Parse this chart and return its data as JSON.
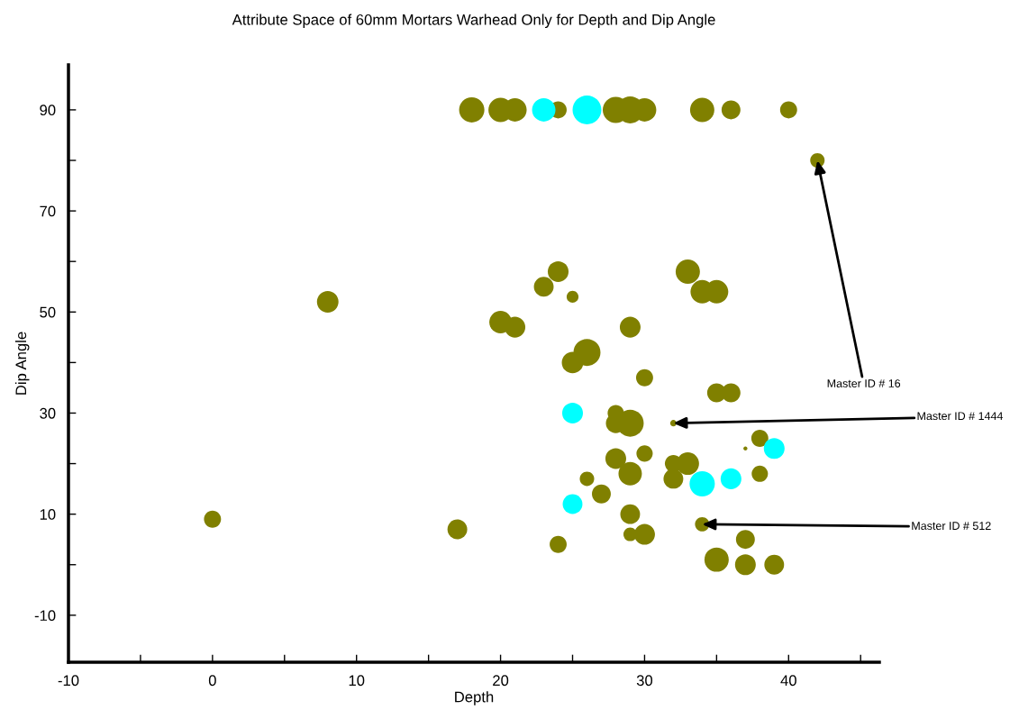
{
  "chart_data": {
    "type": "bubble",
    "title": "Attribute Space of 60mm Mortars Warhead Only for Depth and Dip Angle",
    "xlabel": "Depth",
    "ylabel": "Dip Angle",
    "xlim": [
      -10,
      46.3
    ],
    "ylim": [
      -19.3,
      98.9
    ],
    "xticks": [
      -10,
      {
        "value": -5,
        "label": null
      },
      0,
      {
        "value": 5,
        "label": null
      },
      10,
      {
        "value": 15,
        "label": null
      },
      20,
      {
        "value": 25,
        "label": null
      },
      30,
      {
        "value": 35,
        "label": null
      },
      40,
      {
        "value": 45,
        "label": null
      }
    ],
    "yticks": [
      -10,
      {
        "value": 0,
        "label": null
      },
      10,
      {
        "value": 20,
        "label": null
      },
      30,
      {
        "value": 40,
        "label": null
      },
      50,
      {
        "value": 60,
        "label": null
      },
      70,
      {
        "value": 80,
        "label": null
      },
      90
    ],
    "grid": false,
    "legend": false,
    "series": [
      {
        "color": "#808000",
        "x": [
          18,
          20,
          21,
          24,
          28,
          29,
          30,
          34,
          36,
          40,
          42,
          8,
          24,
          23,
          25,
          33,
          34,
          35,
          20,
          21,
          29,
          26,
          25,
          30,
          35,
          36,
          28,
          28,
          29,
          32,
          37,
          38,
          28,
          29,
          30,
          32,
          33,
          32,
          38,
          26,
          27,
          29,
          29,
          30,
          34,
          37,
          35,
          37,
          39,
          24,
          17,
          0
        ],
        "values": [
          90,
          90,
          90,
          90,
          90,
          90,
          90,
          90,
          90,
          90,
          80,
          52,
          58,
          55,
          53,
          58,
          54,
          54,
          48,
          47,
          47,
          42,
          40,
          37,
          34,
          34,
          30,
          28,
          28,
          28,
          23,
          25,
          21,
          18,
          22,
          20,
          20,
          17,
          18,
          17,
          14,
          10,
          6,
          6,
          8,
          5,
          1,
          0,
          0,
          4,
          7,
          9
        ],
        "sizes": [
          0.77,
          0.71,
          0.66,
          0.35,
          0.82,
          0.88,
          0.66,
          0.71,
          0.43,
          0.35,
          0.25,
          0.56,
          0.52,
          0.47,
          0.17,
          0.71,
          0.66,
          0.66,
          0.61,
          0.52,
          0.52,
          0.88,
          0.56,
          0.35,
          0.43,
          0.43,
          0.32,
          0.47,
          0.88,
          0.05,
          0.02,
          0.35,
          0.52,
          0.66,
          0.32,
          0.35,
          0.61,
          0.47,
          0.32,
          0.25,
          0.43,
          0.47,
          0.22,
          0.52,
          0.25,
          0.43,
          0.71,
          0.52,
          0.47,
          0.35,
          0.47,
          0.35
        ]
      },
      {
        "color": "#00ffff",
        "x": [
          23,
          26,
          25,
          39,
          34,
          36,
          25
        ],
        "values": [
          90,
          90,
          30,
          23,
          16,
          17,
          12
        ],
        "sizes": [
          0.66,
          1,
          0.52,
          0.52,
          0.77,
          0.52,
          0.47
        ]
      }
    ],
    "annotations": [
      {
        "text": "Master ID # 16",
        "x": 42,
        "y": 80
      },
      {
        "text": "Master ID # 1444",
        "x": 32,
        "y": 28
      },
      {
        "text": "Master ID # 512",
        "x": 34,
        "y": 8
      }
    ]
  }
}
